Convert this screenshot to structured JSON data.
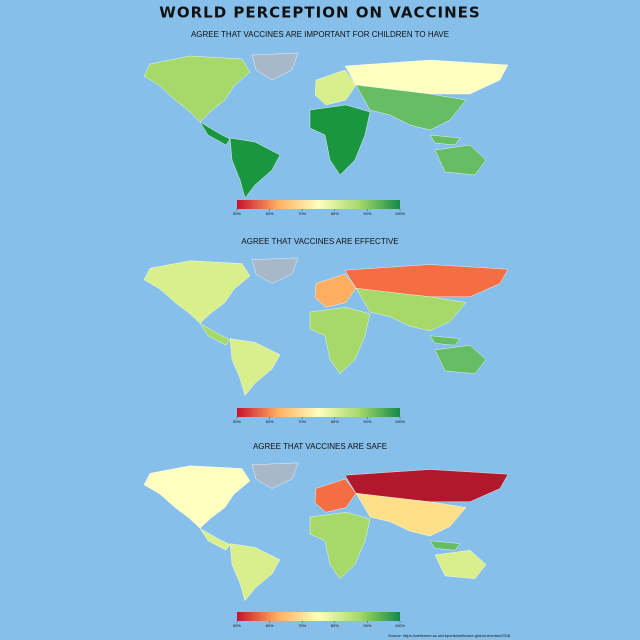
{
  "title": "WORLD PERCEPTION ON VACCINES",
  "maps": [
    {
      "subtitle": "AGREE THAT VACCINES ARE IMPORTANT FOR CHILDREN TO HAVE",
      "colorbar": {
        "range": [
          50,
          100
        ],
        "ticks": [
          {
            "value": 50,
            "label": "50%"
          },
          {
            "value": 60,
            "label": "60%"
          },
          {
            "value": 70,
            "label": "70%"
          },
          {
            "value": 80,
            "label": "80%"
          },
          {
            "value": 90,
            "label": "90%"
          },
          {
            "value": 100,
            "label": "100%"
          }
        ]
      }
    },
    {
      "subtitle": "AGREE THAT VACCINES ARE EFFECTIVE",
      "colorbar": {
        "range": [
          50,
          100
        ],
        "ticks": [
          {
            "value": 50,
            "label": "50%"
          },
          {
            "value": 60,
            "label": "60%"
          },
          {
            "value": 70,
            "label": "70%"
          },
          {
            "value": 80,
            "label": "80%"
          },
          {
            "value": 90,
            "label": "90%"
          },
          {
            "value": 100,
            "label": "100%"
          }
        ]
      }
    },
    {
      "subtitle": "AGREE THAT VACCINES ARE SAFE",
      "colorbar": {
        "range": [
          50,
          100
        ],
        "ticks": [
          {
            "value": 50,
            "label": "50%"
          },
          {
            "value": 60,
            "label": "60%"
          },
          {
            "value": 70,
            "label": "70%"
          },
          {
            "value": 80,
            "label": "80%"
          },
          {
            "value": 90,
            "label": "90%"
          },
          {
            "value": 100,
            "label": "100%"
          }
        ]
      }
    }
  ],
  "source": "Source: https://wellcome.ac.uk/reports/wellcome-global-monitor/2018"
}
